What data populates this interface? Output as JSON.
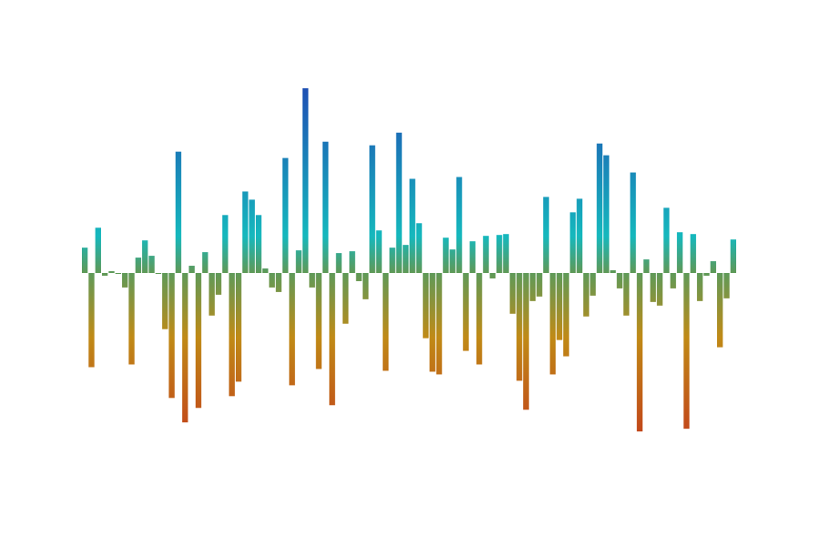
{
  "chart_data": {
    "type": "bar",
    "title": "",
    "xlabel": "",
    "ylabel": "",
    "axes_visible": false,
    "grid": false,
    "legend": "none",
    "ylim": [
      -170,
      210
    ],
    "colors": {
      "positive_top": "#1f4fb4",
      "positive_mid": "#15b8bd",
      "baseline": "#5c9a5a",
      "negative_mid": "#c08a16",
      "negative_bottom": "#c2451a"
    },
    "values": [
      28,
      -104,
      50,
      -3,
      2,
      -1,
      -16,
      -101,
      17,
      36,
      19,
      -1,
      -62,
      -138,
      134,
      -165,
      8,
      -149,
      23,
      -47,
      -24,
      64,
      -136,
      -120,
      90,
      81,
      64,
      5,
      -16,
      -21,
      127,
      -124,
      25,
      204,
      -16,
      -106,
      145,
      -146,
      22,
      -56,
      24,
      -9,
      -29,
      141,
      47,
      -108,
      28,
      155,
      31,
      104,
      55,
      -72,
      -109,
      -112,
      39,
      26,
      106,
      -86,
      35,
      -101,
      41,
      -6,
      42,
      43,
      -45,
      -119,
      -151,
      -31,
      -26,
      84,
      -112,
      -74,
      -92,
      67,
      82,
      -48,
      -25,
      143,
      130,
      3,
      -17,
      -47,
      111,
      -175,
      15,
      -32,
      -36,
      72,
      -17,
      45,
      -172,
      43,
      -31,
      -3,
      13,
      -82,
      -28,
      37
    ]
  }
}
